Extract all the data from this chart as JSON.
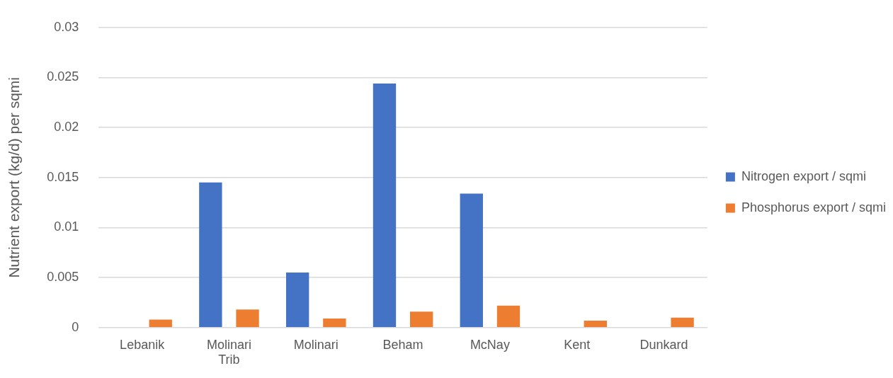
{
  "chart_data": {
    "type": "bar",
    "ylabel": "Nutrient export (kg/d) per sqmi",
    "categories": [
      "Lebanik",
      "Molinari Trib",
      "Molinari",
      "Beham",
      "McNay",
      "Kent",
      "Dunkard"
    ],
    "series": [
      {
        "name": "Nitrogen export / sqmi",
        "color": "#4472c4",
        "values": [
          0,
          0.0145,
          0.0055,
          0.0244,
          0.0134,
          0,
          0
        ]
      },
      {
        "name": "Phosphorus export / sqmi",
        "color": "#ed7d31",
        "values": [
          0.0008,
          0.0018,
          0.0009,
          0.0016,
          0.0022,
          0.0007,
          0.001
        ]
      }
    ],
    "ylim": [
      0,
      0.03
    ],
    "yticks": [
      0,
      0.005,
      0.01,
      0.015,
      0.02,
      0.025,
      0.03
    ],
    "grid": "y",
    "legend": "right"
  }
}
